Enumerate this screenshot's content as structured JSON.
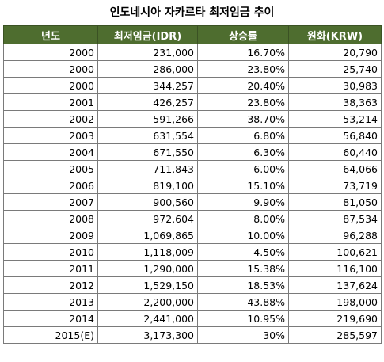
{
  "title": "인도네시아 자카르타 최저임금 추이",
  "headers": [
    "년도",
    "최저임금(IDR)",
    "상승률",
    "원화(KRW)"
  ],
  "rows": [
    [
      "2000",
      "231,000",
      "16.70%",
      "20,790"
    ],
    [
      "2000",
      "286,000",
      "23.80%",
      "25,740"
    ],
    [
      "2000",
      "344,257",
      "20.40%",
      "30,983"
    ],
    [
      "2001",
      "426,257",
      "23.80%",
      "38,363"
    ],
    [
      "2002",
      "591,266",
      "38.70%",
      "53,214"
    ],
    [
      "2003",
      "631,554",
      "6.80%",
      "56,840"
    ],
    [
      "2004",
      "671,550",
      "6.30%",
      "60,440"
    ],
    [
      "2005",
      "711,843",
      "6.00%",
      "64,066"
    ],
    [
      "2006",
      "819,100",
      "15.10%",
      "73,719"
    ],
    [
      "2007",
      "900,560",
      "9.90%",
      "81,050"
    ],
    [
      "2008",
      "972,604",
      "8.00%",
      "87,534"
    ],
    [
      "2009",
      "1,069,865",
      "10.00%",
      "96,288"
    ],
    [
      "2010",
      "1,118,009",
      "4.50%",
      "100,621"
    ],
    [
      "2011",
      "1,290,000",
      "15.38%",
      "116,100"
    ],
    [
      "2012",
      "1,529,150",
      "18.53%",
      "137,624"
    ],
    [
      "2013",
      "2,200,000",
      "43.88%",
      "198,000"
    ],
    [
      "2014",
      "2,441,000",
      "10.95%",
      "219,690"
    ],
    [
      "2015(E)",
      "3,173,300",
      "30%",
      "285,597"
    ]
  ],
  "colors": {
    "header_bg": "#4e6d2f",
    "header_text": "#ffffff",
    "grid": "#7a7a7a"
  }
}
